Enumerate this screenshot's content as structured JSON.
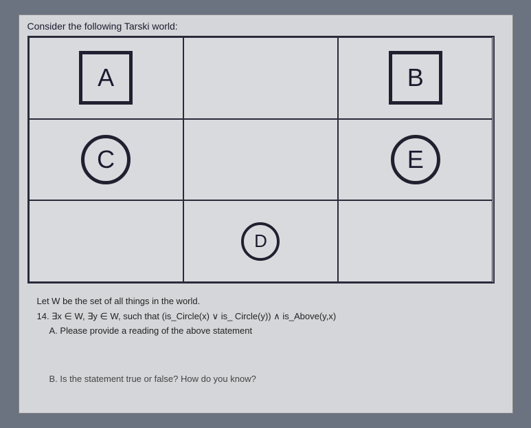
{
  "title": "Consider the following Tarski world:",
  "grid": {
    "rows": 3,
    "cols": 3,
    "cells": [
      {
        "r": 0,
        "c": 0,
        "shape": "square",
        "label": "A",
        "size": "large"
      },
      {
        "r": 0,
        "c": 2,
        "shape": "square",
        "label": "B",
        "size": "large"
      },
      {
        "r": 1,
        "c": 0,
        "shape": "circle",
        "label": "C",
        "size": "large"
      },
      {
        "r": 1,
        "c": 2,
        "shape": "circle",
        "label": "E",
        "size": "large"
      },
      {
        "r": 2,
        "c": 1,
        "shape": "circle",
        "label": "D",
        "size": "small"
      }
    ],
    "border_color": "#2a2a3a",
    "background": "#d8dadd",
    "shape_border_color": "#202030"
  },
  "text": {
    "let_line": "Let W be the set of all things in the world.",
    "q14": "14. ∃x ∈ W, ∃y ∈ W, such that (is_Circle(x) ∨ is_ Circle(y)) ∧ is_Above(y,x)",
    "sub_a": "A.  Please provide a reading of the above statement",
    "sub_b": "B.  Is the statement true or false?  How do you know?"
  },
  "colors": {
    "page_bg": "#d4d6d9",
    "outer_bg": "#6b7280",
    "text": "#1a1a2e"
  }
}
